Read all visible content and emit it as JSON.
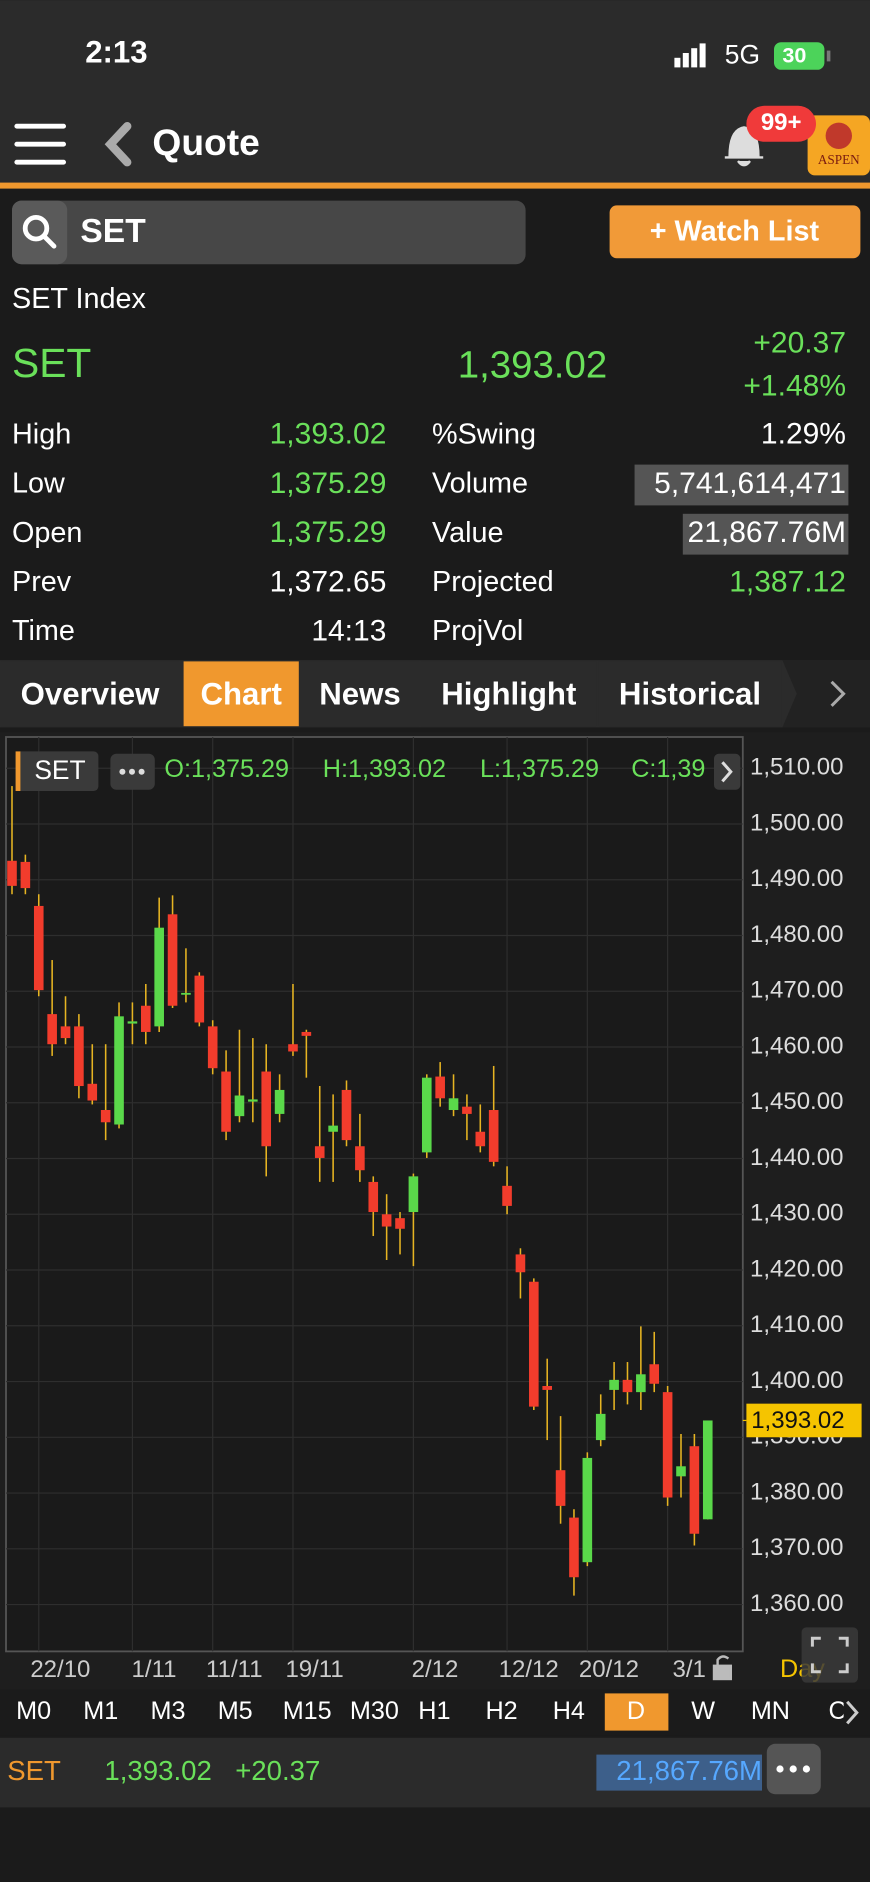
{
  "status_bar": {
    "time": "2:13",
    "network": "5G",
    "battery": "30"
  },
  "header": {
    "title": "Quote",
    "badge": "99+",
    "logo": "ASPEN"
  },
  "search": {
    "query": "SET",
    "button": "+ Watch List"
  },
  "quote": {
    "name": "SET Index",
    "symbol": "SET",
    "last": "1,393.02",
    "change": "+20.37",
    "change_pct": "+1.48%",
    "left": [
      {
        "label": "High",
        "value": "1,393.02",
        "color": "#6ae05a"
      },
      {
        "label": "Low",
        "value": "1,375.29",
        "color": "#6ae05a"
      },
      {
        "label": "Open",
        "value": "1,375.29",
        "color": "#6ae05a"
      },
      {
        "label": "Prev",
        "value": "1,372.65",
        "color": "#ffffff"
      },
      {
        "label": "Time",
        "value": "14:13",
        "color": "#ffffff"
      }
    ],
    "right": [
      {
        "label": "%Swing",
        "value": "1.29%",
        "color": "#ffffff"
      },
      {
        "label": "Volume",
        "value": "5,741,614,471",
        "color": "#ffffff",
        "highlight": true
      },
      {
        "label": "Value",
        "value": "21,867.76M",
        "color": "#ffffff",
        "highlight": true
      },
      {
        "label": "Projected",
        "value": "1,387.12",
        "color": "#6ae05a"
      },
      {
        "label": "ProjVol"
      }
    ]
  },
  "tabs": {
    "items": [
      "Overview",
      "Chart",
      "News",
      "Highlight",
      "Historical"
    ],
    "active": 1
  },
  "chart_data": {
    "type": "candlestick",
    "symbol": "SET",
    "ohlc_labels": [
      "O:1,375.29",
      "H:1,393.02",
      "L:1,375.29",
      "C:1,39"
    ],
    "period": "Day",
    "up_color": "#5ad84a",
    "down_color": "#f23c2c",
    "categories": [
      null,
      null,
      "22/10",
      null,
      null,
      null,
      null,
      null,
      null,
      "1/11",
      null,
      null,
      null,
      null,
      null,
      "11/11",
      null,
      null,
      null,
      null,
      null,
      "19/11",
      null,
      null,
      null,
      null,
      null,
      null,
      null,
      null,
      "2/12",
      null,
      null,
      null,
      null,
      null,
      null,
      "12/12",
      null,
      null,
      null,
      null,
      null,
      "20/12",
      null,
      null,
      null,
      null,
      null,
      "3/1",
      null,
      null,
      null
    ],
    "open": [
      1493.4,
      1493.2,
      1485.3,
      1465.9,
      1463.7,
      1463.7,
      1453.4,
      1448.7,
      1446.1,
      1464.2,
      1467.4,
      1463.7,
      1483.8,
      1469.5,
      1472.8,
      1463.7,
      1455.6,
      1447.6,
      1450.2,
      1455.6,
      1448.0,
      1460.5,
      1462.7,
      1442.2,
      1444.8,
      1452.3,
      1442.2,
      1435.8,
      1430.0,
      1429.3,
      1430.4,
      1441.1,
      1454.7,
      1448.7,
      1449.3,
      1444.8,
      1448.7,
      1435.1,
      1422.8,
      1417.9,
      1399.2,
      1384.1,
      1375.6,
      1367.6,
      1389.5,
      1398.5,
      1400.3,
      1398.1,
      1403.1,
      1398.1,
      1383.0,
      1388.4,
      1375.29
    ],
    "high": [
      1506.8,
      1494.5,
      1487.4,
      1475.6,
      1469.1,
      1465.9,
      1460.5,
      1460.5,
      1468.0,
      1468.0,
      1471.3,
      1486.8,
      1487.2,
      1477.7,
      1473.4,
      1464.8,
      1459.4,
      1463.1,
      1461.6,
      1460.5,
      1455.1,
      1471.3,
      1463.1,
      1453.0,
      1451.5,
      1454.0,
      1448.0,
      1436.8,
      1433.6,
      1430.4,
      1437.3,
      1455.1,
      1457.3,
      1455.1,
      1451.5,
      1449.7,
      1456.6,
      1438.6,
      1423.9,
      1418.5,
      1404.1,
      1393.8,
      1377.1,
      1387.3,
      1397.7,
      1403.5,
      1403.5,
      1409.9,
      1408.9,
      1399.2,
      1390.6,
      1390.6,
      1393.02
    ],
    "low": [
      1487.4,
      1487.4,
      1469.1,
      1458.4,
      1460.5,
      1450.8,
      1449.7,
      1443.3,
      1445.4,
      1460.5,
      1460.5,
      1462.7,
      1467.0,
      1468.0,
      1463.7,
      1455.1,
      1443.3,
      1446.5,
      1446.5,
      1436.8,
      1446.5,
      1458.4,
      1454.5,
      1435.8,
      1435.8,
      1442.2,
      1435.8,
      1426.1,
      1421.8,
      1422.8,
      1420.7,
      1440.1,
      1449.3,
      1447.6,
      1443.3,
      1441.1,
      1438.6,
      1430.0,
      1414.9,
      1394.9,
      1389.5,
      1374.5,
      1361.6,
      1366.9,
      1388.4,
      1394.9,
      1395.9,
      1394.9,
      1398.1,
      1377.7,
      1379.2,
      1370.6,
      1375.29
    ],
    "close": [
      1488.9,
      1488.5,
      1470.2,
      1460.5,
      1461.6,
      1453.0,
      1450.4,
      1446.5,
      1465.5,
      1464.6,
      1462.7,
      1481.4,
      1467.4,
      1469.7,
      1464.4,
      1456.2,
      1444.8,
      1451.3,
      1450.6,
      1442.2,
      1452.3,
      1459.2,
      1462.0,
      1440.1,
      1445.9,
      1443.3,
      1437.9,
      1430.4,
      1427.8,
      1427.4,
      1436.8,
      1454.5,
      1450.8,
      1450.8,
      1448.0,
      1442.2,
      1439.4,
      1431.5,
      1419.6,
      1395.5,
      1398.5,
      1377.7,
      1364.9,
      1386.3,
      1394.2,
      1400.3,
      1398.1,
      1401.3,
      1399.6,
      1379.2,
      1384.8,
      1372.7,
      1393.02
    ],
    "ylim": [
      1351.6,
      1515.6
    ],
    "yticks": [
      {
        "value": 1360,
        "label": "1,360.00"
      },
      {
        "value": 1370,
        "label": "1,370.00"
      },
      {
        "value": 1380,
        "label": "1,380.00"
      },
      {
        "value": 1390,
        "label": "1,390.00"
      },
      {
        "value": 1400,
        "label": "1,400.00"
      },
      {
        "value": 1410,
        "label": "1,410.00"
      },
      {
        "value": 1420,
        "label": "1,420.00"
      },
      {
        "value": 1430,
        "label": "1,430.00"
      },
      {
        "value": 1440,
        "label": "1,440.00"
      },
      {
        "value": 1450,
        "label": "1,450.00"
      },
      {
        "value": 1460,
        "label": "1,460.00"
      },
      {
        "value": 1470,
        "label": "1,470.00"
      },
      {
        "value": 1480,
        "label": "1,480.00"
      },
      {
        "value": 1490,
        "label": "1,490.00"
      },
      {
        "value": 1500,
        "label": "1,500.00"
      },
      {
        "value": 1510,
        "label": "1,510.00"
      }
    ],
    "last_price": {
      "value": 1393.02,
      "label": "1,393.02"
    },
    "grid": true
  },
  "timeframes": {
    "items": [
      "M0",
      "M1",
      "M3",
      "M5",
      "M15",
      "M30",
      "H1",
      "H2",
      "H4",
      "D",
      "W",
      "MN",
      "C"
    ],
    "active": 9
  },
  "footer": {
    "symbol": "SET",
    "last": "1,393.02",
    "change": "+20.37",
    "value": "21,867.76M"
  }
}
